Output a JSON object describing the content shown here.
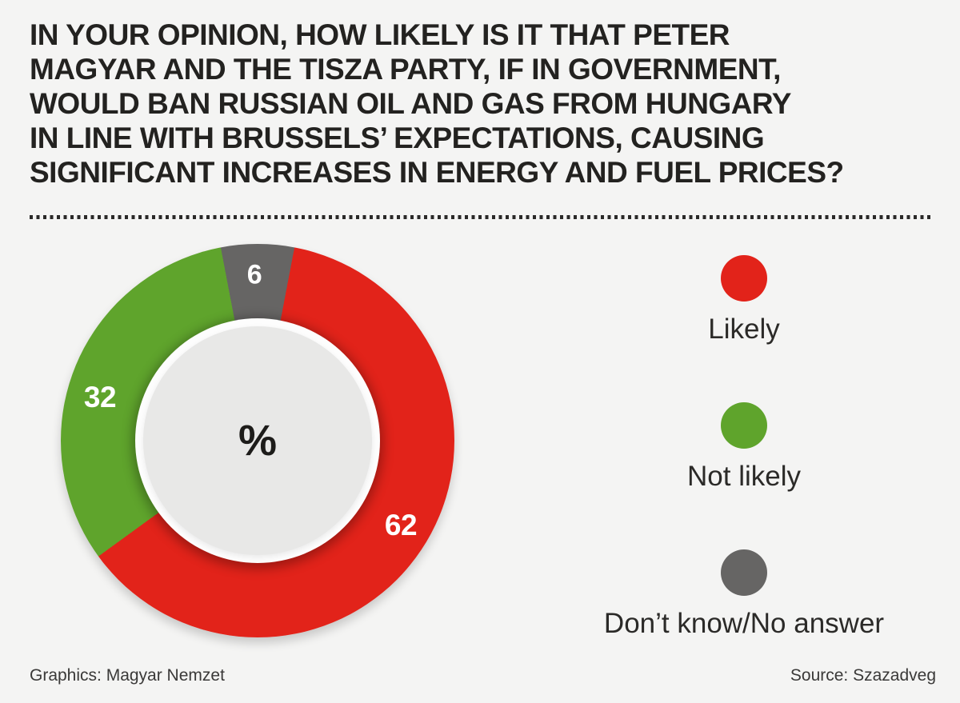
{
  "title": {
    "lines": [
      "IN YOUR OPINION, HOW LIKELY IS IT THAT PETER",
      "MAGYAR AND THE TISZA PARTY, IF IN GOVERNMENT,",
      "WOULD BAN RUSSIAN OIL AND GAS FROM HUNGARY",
      "IN LINE WITH BRUSSELS’ EXPECTATIONS, CAUSING",
      "SIGNIFICANT INCREASES IN ENERGY AND FUEL PRICES?"
    ]
  },
  "chart_data": {
    "type": "pie",
    "subtype": "donut",
    "title": "",
    "unit_label": "%",
    "start_angle": 10.8,
    "legend_position": "right",
    "background_color": "#f4f4f3",
    "inner_ring_color": "#fdfdfd",
    "inner_disc_color": "#e8e8e7",
    "categories": [
      "Likely",
      "Not likely",
      "Don’t know/No answer"
    ],
    "values": [
      62,
      32,
      6
    ],
    "slices": [
      {
        "label": "Likely",
        "value": 62,
        "color": "#e2231a"
      },
      {
        "label": "Not likely",
        "value": 32,
        "color": "#5fa42c"
      },
      {
        "label": "Don’t know/No answer",
        "value": 6,
        "color": "#666564"
      }
    ]
  },
  "footer": {
    "graphics": "Graphics: Magyar Nemzet",
    "source": "Source: Szazadveg"
  }
}
